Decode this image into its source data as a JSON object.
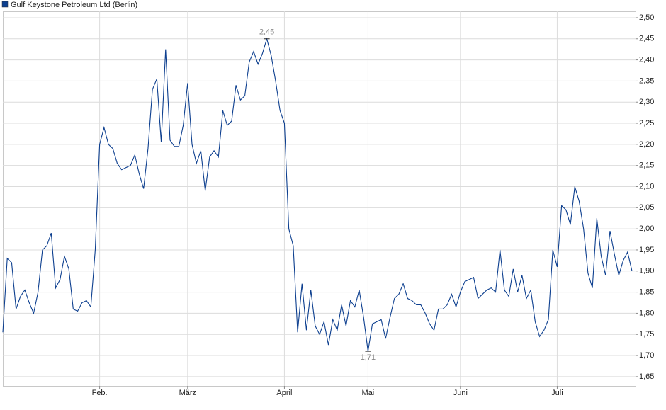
{
  "chart_data": {
    "type": "line",
    "categories": [
      null,
      null,
      null,
      null,
      null,
      null,
      null,
      null,
      null,
      null,
      null,
      null,
      null,
      null,
      null,
      null,
      null,
      null,
      null,
      null,
      null,
      null,
      "Feb.",
      null,
      null,
      null,
      null,
      null,
      null,
      null,
      null,
      null,
      null,
      null,
      null,
      null,
      null,
      null,
      null,
      null,
      null,
      null,
      "März",
      null,
      null,
      null,
      null,
      null,
      null,
      null,
      null,
      null,
      null,
      null,
      null,
      null,
      null,
      null,
      null,
      null,
      null,
      null,
      null,
      null,
      "April",
      null,
      null,
      null,
      null,
      null,
      null,
      null,
      null,
      null,
      null,
      null,
      null,
      null,
      null,
      null,
      null,
      null,
      null,
      "Mai",
      null,
      null,
      null,
      null,
      null,
      null,
      null,
      null,
      null,
      null,
      null,
      null,
      null,
      null,
      null,
      null,
      null,
      null,
      null,
      null,
      "Juni",
      null,
      null,
      null,
      null,
      null,
      null,
      null,
      null,
      null,
      null,
      null,
      null,
      null,
      null,
      null,
      null,
      null,
      null,
      null,
      null,
      null,
      "Juli",
      null,
      null,
      null,
      null,
      null,
      null,
      null,
      null,
      null,
      null,
      null,
      null,
      null,
      null,
      null,
      null,
      null
    ],
    "series": [
      {
        "name": "Gulf Keystone Petroleum Ltd (Berlin)",
        "color": "#0d3f8f",
        "values": [
          1.755,
          1.93,
          1.92,
          1.81,
          1.84,
          1.855,
          1.825,
          1.8,
          1.85,
          1.95,
          1.96,
          1.99,
          1.86,
          1.88,
          1.935,
          1.905,
          1.81,
          1.805,
          1.825,
          1.83,
          1.815,
          1.95,
          2.2,
          2.24,
          2.2,
          2.19,
          2.155,
          2.14,
          2.145,
          2.15,
          2.175,
          2.13,
          2.095,
          2.19,
          2.33,
          2.355,
          2.205,
          2.425,
          2.21,
          2.195,
          2.195,
          2.245,
          2.345,
          2.2,
          2.155,
          2.185,
          2.09,
          2.17,
          2.185,
          2.17,
          2.28,
          2.245,
          2.255,
          2.34,
          2.305,
          2.315,
          2.395,
          2.42,
          2.39,
          2.415,
          2.45,
          2.41,
          2.35,
          2.28,
          2.25,
          2.0,
          1.96,
          1.755,
          1.87,
          1.76,
          1.855,
          1.77,
          1.75,
          1.78,
          1.725,
          1.785,
          1.76,
          1.82,
          1.77,
          1.83,
          1.815,
          1.855,
          1.79,
          1.71,
          1.775,
          1.78,
          1.785,
          1.74,
          1.79,
          1.835,
          1.845,
          1.87,
          1.835,
          1.83,
          1.82,
          1.82,
          1.8,
          1.775,
          1.76,
          1.81,
          1.81,
          1.82,
          1.845,
          1.815,
          1.85,
          1.875,
          1.88,
          1.885,
          1.835,
          1.845,
          1.855,
          1.86,
          1.85,
          1.95,
          1.855,
          1.84,
          1.905,
          1.85,
          1.89,
          1.835,
          1.855,
          1.78,
          1.745,
          1.76,
          1.785,
          1.95,
          1.91,
          2.055,
          2.045,
          2.01,
          2.1,
          2.065,
          2.0,
          1.895,
          1.86,
          2.025,
          1.935,
          1.89,
          1.995,
          1.94,
          1.89,
          1.925,
          1.945,
          1.9
        ],
        "value_labels": [
          null,
          null,
          null,
          null,
          null,
          null,
          null,
          null,
          null,
          null,
          null,
          null,
          null,
          null,
          null,
          null,
          null,
          null,
          null,
          null,
          null,
          null,
          null,
          null,
          null,
          null,
          null,
          null,
          null,
          null,
          null,
          null,
          null,
          null,
          null,
          null,
          null,
          null,
          null,
          null,
          null,
          null,
          null,
          null,
          null,
          null,
          null,
          null,
          null,
          null,
          null,
          null,
          null,
          null,
          null,
          null,
          null,
          null,
          null,
          null,
          "2,45",
          null,
          null,
          null,
          null,
          null,
          null,
          null,
          null,
          null,
          null,
          null,
          null,
          null,
          null,
          null,
          null,
          null,
          null,
          null,
          null,
          null,
          null,
          "1,71",
          null,
          null,
          null,
          null,
          null,
          null,
          null,
          null,
          null,
          null,
          null,
          null,
          null,
          null,
          null,
          null,
          null,
          null,
          null,
          null,
          null,
          null,
          null,
          null,
          null,
          null,
          null,
          null,
          null,
          null,
          null,
          null,
          null,
          null,
          null,
          null,
          null,
          null,
          null,
          null,
          null,
          null,
          null,
          null,
          null,
          null,
          null,
          null,
          null,
          null,
          null,
          null,
          null,
          null,
          null,
          null,
          null,
          null,
          null,
          null
        ]
      }
    ],
    "ylim": [
      1.628,
      2.515
    ],
    "yticks": [
      {
        "value": 1.65,
        "label": "1,65"
      },
      {
        "value": 1.7,
        "label": "1,70"
      },
      {
        "value": 1.75,
        "label": "1,75"
      },
      {
        "value": 1.8,
        "label": "1,80"
      },
      {
        "value": 1.85,
        "label": "1,85"
      },
      {
        "value": 1.9,
        "label": "1,90"
      },
      {
        "value": 1.95,
        "label": "1,95"
      },
      {
        "value": 2.0,
        "label": "2,00"
      },
      {
        "value": 2.05,
        "label": "2,05"
      },
      {
        "value": 2.1,
        "label": "2,10"
      },
      {
        "value": 2.15,
        "label": "2,15"
      },
      {
        "value": 2.2,
        "label": "2,20"
      },
      {
        "value": 2.25,
        "label": "2,25"
      },
      {
        "value": 2.3,
        "label": "2,30"
      },
      {
        "value": 2.35,
        "label": "2,35"
      },
      {
        "value": 2.4,
        "label": "2,40"
      },
      {
        "value": 2.45,
        "label": "2,45"
      },
      {
        "value": 2.5,
        "label": "2,50"
      }
    ],
    "grid": true
  }
}
